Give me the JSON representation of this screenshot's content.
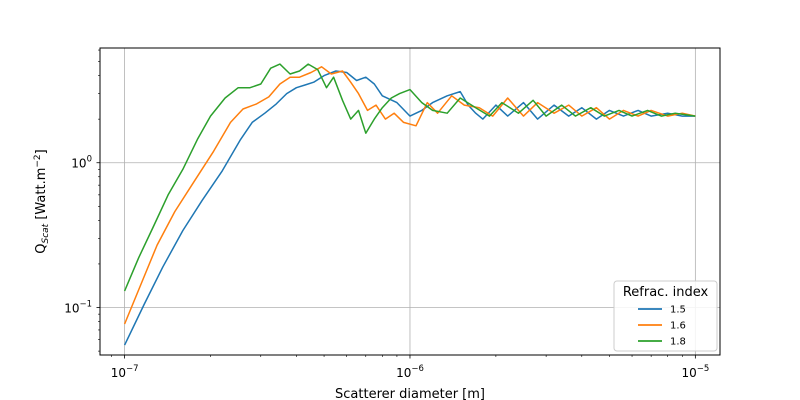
{
  "chart_data": {
    "type": "line",
    "title": "",
    "xlabel": "Scatterer diameter [m]",
    "ylabel": {
      "base": "Q",
      "sub": "Scat",
      "unit_prefix": " [Watt.m",
      "unit_exp": "−2",
      "unit_suffix": "]"
    },
    "xscale": "log",
    "yscale": "log",
    "xlim": [
      8.2e-08,
      1.22e-05
    ],
    "ylim": [
      0.047,
      6.2
    ],
    "grid": true,
    "legend": {
      "title": "Refrac. index",
      "placement": "lower-right"
    },
    "x_ticks": [
      {
        "value": 1e-07,
        "base": "10",
        "exp": "−7"
      },
      {
        "value": 1e-06,
        "base": "10",
        "exp": "−6"
      },
      {
        "value": 1e-05,
        "base": "10",
        "exp": "−5"
      }
    ],
    "y_ticks": [
      {
        "value": 0.1,
        "base": "10",
        "exp": "−1"
      },
      {
        "value": 1,
        "base": "10",
        "exp": "0"
      }
    ],
    "series": [
      {
        "name": "1.5",
        "color": "#1f77b4",
        "x": [
          1e-07,
          1.17e-07,
          1.36e-07,
          1.6e-07,
          1.87e-07,
          2.2e-07,
          2.55e-07,
          2.8e-07,
          3.1e-07,
          3.4e-07,
          3.7e-07,
          4e-07,
          4.3e-07,
          4.6e-07,
          5e-07,
          5.5e-07,
          6e-07,
          6.5e-07,
          7e-07,
          7.5e-07,
          8e-07,
          9e-07,
          1e-06,
          1.1e-06,
          1.2e-06,
          1.35e-06,
          1.5e-06,
          1.6e-06,
          1.7e-06,
          1.8e-06,
          2e-06,
          2.2e-06,
          2.5e-06,
          2.8e-06,
          3.2e-06,
          3.6e-06,
          4e-06,
          4.5e-06,
          5e-06,
          5.6e-06,
          6.3e-06,
          7e-06,
          8e-06,
          9e-06,
          1e-05
        ],
        "y": [
          0.055,
          0.105,
          0.19,
          0.34,
          0.55,
          0.88,
          1.45,
          1.9,
          2.2,
          2.55,
          3.0,
          3.3,
          3.45,
          3.6,
          4.0,
          4.3,
          4.2,
          3.7,
          3.9,
          3.5,
          2.9,
          2.6,
          2.1,
          2.3,
          2.6,
          2.9,
          3.1,
          2.5,
          2.2,
          2.0,
          2.5,
          2.1,
          2.6,
          2.0,
          2.5,
          2.1,
          2.4,
          2.0,
          2.3,
          2.1,
          2.3,
          2.1,
          2.2,
          2.1,
          2.1
        ]
      },
      {
        "name": "1.6",
        "color": "#ff7f0e",
        "x": [
          1e-07,
          1.15e-07,
          1.3e-07,
          1.5e-07,
          1.75e-07,
          2.05e-07,
          2.35e-07,
          2.6e-07,
          2.9e-07,
          3.2e-07,
          3.5e-07,
          3.8e-07,
          4.1e-07,
          4.5e-07,
          4.9e-07,
          5.3e-07,
          5.8e-07,
          6.2e-07,
          6.6e-07,
          7.1e-07,
          7.6e-07,
          8.2e-07,
          8.8e-07,
          9.5e-07,
          1.05e-06,
          1.15e-06,
          1.25e-06,
          1.4e-06,
          1.55e-06,
          1.75e-06,
          1.95e-06,
          2.2e-06,
          2.5e-06,
          2.8e-06,
          3.2e-06,
          3.6e-06,
          4e-06,
          4.5e-06,
          5e-06,
          5.6e-06,
          6.3e-06,
          7e-06,
          8e-06,
          9e-06,
          1e-05
        ],
        "y": [
          0.077,
          0.15,
          0.27,
          0.46,
          0.74,
          1.2,
          1.9,
          2.35,
          2.55,
          2.85,
          3.5,
          3.9,
          3.9,
          4.2,
          4.6,
          4.1,
          4.3,
          3.6,
          3.0,
          2.3,
          2.5,
          2.0,
          2.2,
          1.9,
          1.8,
          2.6,
          2.2,
          2.9,
          2.5,
          2.4,
          2.1,
          2.8,
          2.1,
          2.6,
          2.2,
          2.5,
          2.1,
          2.4,
          2.0,
          2.3,
          2.1,
          2.3,
          2.1,
          2.2,
          2.1
        ]
      },
      {
        "name": "1.8",
        "color": "#2ca02c",
        "x": [
          1e-07,
          1.12e-07,
          1.26e-07,
          1.42e-07,
          1.6e-07,
          1.8e-07,
          2e-07,
          2.25e-07,
          2.5e-07,
          2.75e-07,
          3e-07,
          3.25e-07,
          3.5e-07,
          3.8e-07,
          4.1e-07,
          4.4e-07,
          4.75e-07,
          5.1e-07,
          5.4e-07,
          5.8e-07,
          6.2e-07,
          6.6e-07,
          7e-07,
          7.5e-07,
          8e-07,
          8.6e-07,
          9.2e-07,
          1e-06,
          1.1e-06,
          1.2e-06,
          1.35e-06,
          1.5e-06,
          1.7e-06,
          1.9e-06,
          2.1e-06,
          2.4e-06,
          2.7e-06,
          3e-06,
          3.4e-06,
          3.8e-06,
          4.3e-06,
          4.8e-06,
          5.4e-06,
          6e-06,
          6.8e-06,
          7.6e-06,
          8.5e-06,
          1e-05
        ],
        "y": [
          0.13,
          0.22,
          0.36,
          0.6,
          0.9,
          1.45,
          2.1,
          2.8,
          3.3,
          3.3,
          3.5,
          4.5,
          4.8,
          4.1,
          4.3,
          4.8,
          4.4,
          3.3,
          3.9,
          2.7,
          2.0,
          2.3,
          1.6,
          2.0,
          2.4,
          2.8,
          3.0,
          3.2,
          2.6,
          2.3,
          2.2,
          2.8,
          2.4,
          2.1,
          2.6,
          2.2,
          2.7,
          2.1,
          2.5,
          2.1,
          2.4,
          2.1,
          2.3,
          2.1,
          2.3,
          2.1,
          2.2,
          2.1
        ]
      }
    ]
  }
}
